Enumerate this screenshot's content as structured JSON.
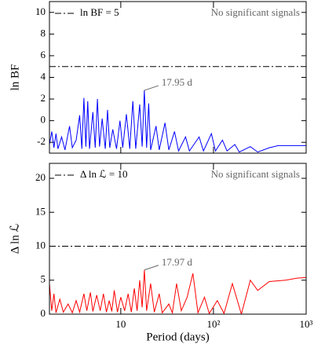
{
  "chart_data": [
    {
      "type": "line",
      "ylabel": "ln BF",
      "log_x": true,
      "xlim": [
        1.7,
        1000
      ],
      "xticks": [
        10,
        100,
        1000
      ],
      "ylim": [
        -3,
        11
      ],
      "yticks": [
        -2,
        0,
        2,
        4,
        6,
        8,
        10
      ],
      "hline": {
        "value": 5,
        "label": "ln BF = 5"
      },
      "note": "No significant signals",
      "annotation": {
        "text": "17.95 d",
        "x": 17.95,
        "y": 2.8
      },
      "x": [
        1.7,
        1.8,
        1.9,
        2.0,
        2.1,
        2.3,
        2.5,
        2.8,
        3.0,
        3.3,
        3.6,
        3.8,
        4.0,
        4.2,
        4.4,
        4.6,
        5.0,
        5.3,
        5.6,
        5.9,
        6.3,
        6.8,
        7.2,
        7.6,
        8.2,
        9.0,
        9.8,
        10.5,
        11.5,
        12.5,
        13.5,
        14.5,
        16.0,
        17.0,
        17.95,
        19,
        20,
        21,
        24,
        26,
        30,
        33,
        38,
        42,
        50,
        55,
        70,
        78,
        95,
        105,
        125,
        140,
        170,
        190,
        250,
        300,
        400,
        500,
        1000
      ],
      "series": [
        {
          "color": "#0000ff",
          "values": [
            -2.2,
            -1.0,
            -2.5,
            -1.2,
            -2.6,
            -1.5,
            -2.7,
            -0.5,
            -2.5,
            -1.8,
            0.5,
            -2.6,
            2.1,
            -2.4,
            1.8,
            -2.6,
            0.8,
            -2.5,
            2.0,
            -2.4,
            0.2,
            -2.6,
            1.0,
            -2.5,
            -0.8,
            -2.6,
            0.0,
            -2.5,
            0.6,
            -2.6,
            1.8,
            -2.6,
            1.5,
            -2.4,
            2.8,
            -2.5,
            1.6,
            -2.7,
            -0.5,
            -2.7,
            -0.2,
            -2.7,
            -1.0,
            -2.8,
            -1.5,
            -2.8,
            -1.5,
            -2.8,
            -1.2,
            -2.8,
            -1.8,
            -2.8,
            -2.2,
            -2.9,
            -2.4,
            -2.9,
            -2.5,
            -2.3,
            -2.3
          ]
        }
      ]
    },
    {
      "type": "line",
      "ylabel": "Δ ln ℒ",
      "xlabel": "Period (days)",
      "log_x": true,
      "xlim": [
        1.7,
        1000
      ],
      "xticks": [
        10,
        {
          "value": 100,
          "label": "10²"
        },
        {
          "value": 1000,
          "label": "10³"
        }
      ],
      "ylim": [
        0,
        22.2
      ],
      "yticks": [
        0,
        5,
        10,
        15,
        20
      ],
      "hline": {
        "value": 10,
        "label": "Δ ln ℒ = 10"
      },
      "note": "No significant signals",
      "annotation": {
        "text": "17.97 d",
        "x": 17.97,
        "y": 6.5
      },
      "x": [
        1.7,
        1.8,
        1.9,
        2.0,
        2.2,
        2.4,
        2.7,
        3.0,
        3.3,
        3.6,
        4.0,
        4.3,
        4.7,
        5.0,
        5.5,
        6.0,
        6.5,
        7.0,
        7.5,
        8.0,
        8.5,
        9.2,
        10,
        11,
        12,
        13,
        14,
        15,
        16,
        17,
        17.97,
        19,
        21,
        23,
        26,
        28,
        33,
        36,
        40,
        45,
        52,
        60,
        68,
        80,
        90,
        110,
        130,
        160,
        200,
        250,
        300,
        400,
        600,
        800,
        1000
      ],
      "series": [
        {
          "color": "#ff0000",
          "values": [
            4.5,
            0.5,
            3.0,
            0.2,
            2.2,
            0.3,
            1.5,
            0.2,
            2.0,
            0.3,
            3.0,
            0.5,
            3.2,
            0.4,
            2.8,
            0.5,
            3.0,
            0.3,
            2.0,
            0.4,
            3.5,
            0.3,
            2.5,
            0.5,
            3.0,
            0.3,
            3.8,
            0.5,
            5.0,
            1.0,
            6.5,
            0.5,
            4.5,
            0.3,
            3.0,
            0.2,
            1.5,
            0.2,
            4.5,
            0.5,
            2.5,
            6.0,
            0.2,
            2.5,
            0.1,
            2.0,
            0.1,
            4.5,
            0.0,
            5.0,
            3.5,
            4.8,
            5.0,
            5.3,
            5.4
          ]
        }
      ]
    }
  ]
}
